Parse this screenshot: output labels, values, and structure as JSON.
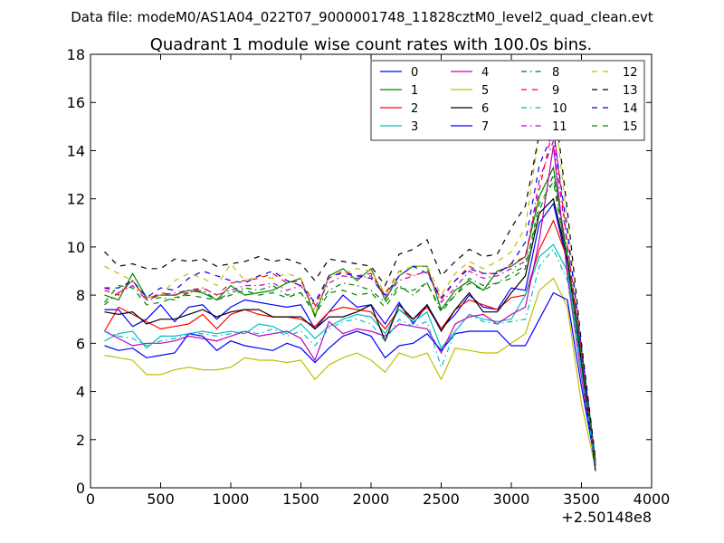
{
  "figure": {
    "suptitle": "Data file: modeM0/AS1A04_022T07_9000001748_11828cztM0_level2_quad_clean.evt"
  },
  "chart_data": {
    "type": "line",
    "title": "Quadrant 1 module wise count rates with 100.0s bins.",
    "xlabel": "",
    "ylabel": "",
    "x_offset_label": "+2.50148e8",
    "xlim": [
      0,
      4000
    ],
    "ylim": [
      0,
      18
    ],
    "xticks": [
      0,
      500,
      1000,
      1500,
      2000,
      2500,
      3000,
      3500,
      4000
    ],
    "yticks": [
      0,
      2,
      4,
      6,
      8,
      10,
      12,
      14,
      16,
      18
    ],
    "grid": false,
    "legend_position": "top-right",
    "legend_columns": 4,
    "x": [
      100,
      200,
      300,
      400,
      500,
      600,
      700,
      800,
      900,
      1000,
      1100,
      1200,
      1300,
      1400,
      1500,
      1600,
      1700,
      1800,
      1900,
      2000,
      2100,
      2200,
      2300,
      2400,
      2500,
      2600,
      2700,
      2800,
      2900,
      3000,
      3100,
      3200,
      3300,
      3400,
      3500,
      3600
    ],
    "series": [
      {
        "name": "0",
        "color": "#0000ff",
        "dash": "solid",
        "values": [
          7.4,
          7.4,
          6.7,
          7.0,
          7.6,
          6.9,
          7.5,
          7.6,
          7.0,
          7.5,
          7.8,
          7.7,
          7.6,
          7.5,
          7.6,
          6.6,
          7.3,
          8.0,
          7.5,
          7.6,
          6.8,
          7.7,
          6.8,
          7.6,
          6.6,
          7.2,
          8.0,
          7.5,
          7.4,
          8.3,
          8.2,
          11.0,
          11.8,
          9.3,
          5.5,
          1.1
        ]
      },
      {
        "name": "1",
        "color": "#008000",
        "dash": "solid",
        "values": [
          8.0,
          7.8,
          8.9,
          7.9,
          8.0,
          8.0,
          8.2,
          8.1,
          7.8,
          8.4,
          8.0,
          8.1,
          8.2,
          8.5,
          8.7,
          7.1,
          8.8,
          9.1,
          8.6,
          9.1,
          7.8,
          8.8,
          9.2,
          9.2,
          7.4,
          8.2,
          8.6,
          8.2,
          9.0,
          9.2,
          9.6,
          12.1,
          13.3,
          9.6,
          5.6,
          1.0
        ]
      },
      {
        "name": "2",
        "color": "#ff0000",
        "dash": "solid",
        "values": [
          6.5,
          7.5,
          7.2,
          6.9,
          6.6,
          6.7,
          6.8,
          7.2,
          6.6,
          7.2,
          7.4,
          7.2,
          7.1,
          7.1,
          7.0,
          6.7,
          7.3,
          7.5,
          7.4,
          7.3,
          6.6,
          7.4,
          7.0,
          7.5,
          6.6,
          7.4,
          7.8,
          7.6,
          7.4,
          7.9,
          8.0,
          9.9,
          11.1,
          9.5,
          5.4,
          1.0
        ]
      },
      {
        "name": "3",
        "color": "#00bfbf",
        "dash": "solid",
        "values": [
          6.1,
          6.4,
          6.5,
          5.8,
          6.3,
          6.3,
          6.4,
          6.5,
          6.4,
          6.5,
          6.4,
          6.8,
          6.7,
          6.4,
          6.8,
          6.2,
          6.7,
          7.0,
          7.2,
          7.1,
          6.4,
          7.4,
          6.9,
          7.3,
          5.8,
          6.5,
          7.2,
          7.0,
          6.9,
          7.0,
          8.0,
          9.6,
          10.1,
          9.0,
          5.0,
          0.9
        ]
      },
      {
        "name": "4",
        "color": "#bf00bf",
        "dash": "solid",
        "values": [
          6.5,
          6.2,
          5.9,
          6.0,
          6.0,
          6.1,
          6.3,
          6.2,
          6.1,
          6.3,
          6.5,
          6.3,
          6.4,
          6.5,
          6.2,
          5.3,
          6.9,
          6.4,
          6.6,
          6.5,
          6.3,
          6.8,
          6.7,
          6.6,
          5.6,
          6.8,
          7.1,
          7.2,
          6.8,
          7.2,
          7.5,
          10.3,
          14.2,
          8.8,
          4.6,
          0.9
        ]
      },
      {
        "name": "5",
        "color": "#bfbf00",
        "dash": "solid",
        "values": [
          5.5,
          5.4,
          5.3,
          4.7,
          4.7,
          4.9,
          5.0,
          4.9,
          4.9,
          5.0,
          5.4,
          5.3,
          5.3,
          5.2,
          5.3,
          4.5,
          5.1,
          5.4,
          5.6,
          5.3,
          4.8,
          5.6,
          5.4,
          5.6,
          4.5,
          5.8,
          5.7,
          5.6,
          5.6,
          6.0,
          6.4,
          8.2,
          8.7,
          7.5,
          3.5,
          0.8
        ]
      },
      {
        "name": "6",
        "color": "#000000",
        "dash": "solid",
        "values": [
          7.3,
          7.2,
          7.3,
          6.8,
          7.0,
          7.0,
          7.2,
          7.4,
          7.1,
          7.3,
          7.4,
          7.4,
          7.1,
          7.1,
          7.1,
          6.6,
          7.1,
          7.1,
          7.3,
          7.6,
          6.1,
          7.6,
          7.0,
          7.6,
          6.5,
          7.4,
          8.1,
          7.3,
          7.3,
          8.1,
          8.8,
          11.4,
          12.0,
          9.5,
          5.2,
          0.7
        ]
      },
      {
        "name": "7",
        "color": "#0000ff",
        "dash": "solid",
        "values": [
          5.9,
          5.7,
          5.8,
          5.4,
          5.5,
          5.6,
          6.4,
          6.3,
          5.7,
          6.1,
          5.9,
          5.8,
          5.7,
          6.0,
          5.8,
          5.2,
          5.8,
          6.3,
          6.5,
          6.3,
          5.4,
          5.9,
          6.0,
          6.4,
          5.7,
          6.4,
          6.5,
          6.5,
          6.5,
          5.9,
          5.9,
          7.0,
          8.1,
          7.8,
          4.2,
          1.0
        ]
      },
      {
        "name": "8",
        "color": "#008000",
        "dash": "dashdot",
        "values": [
          7.6,
          8.1,
          8.6,
          7.8,
          7.9,
          7.8,
          8.1,
          8.2,
          7.8,
          8.1,
          8.3,
          8.2,
          8.4,
          8.0,
          8.1,
          7.4,
          8.2,
          8.5,
          8.4,
          8.2,
          7.7,
          8.4,
          8.0,
          8.5,
          7.4,
          8.0,
          8.7,
          8.4,
          8.5,
          8.9,
          9.2,
          11.5,
          13.0,
          9.3,
          5.4,
          0.9
        ]
      },
      {
        "name": "9",
        "color": "#ff0000",
        "dash": "dashed",
        "values": [
          8.2,
          8.0,
          8.6,
          7.8,
          8.1,
          8.0,
          8.1,
          8.3,
          8.0,
          8.5,
          8.6,
          8.7,
          8.9,
          8.5,
          8.6,
          7.6,
          8.7,
          9.0,
          8.8,
          8.9,
          8.0,
          9.0,
          8.8,
          9.0,
          7.8,
          8.6,
          9.2,
          8.9,
          8.9,
          9.3,
          9.6,
          12.4,
          15.0,
          10.1,
          5.7,
          1.0
        ]
      },
      {
        "name": "10",
        "color": "#00bfbf",
        "dash": "dashdot",
        "values": [
          6.5,
          6.3,
          6.2,
          5.9,
          6.1,
          6.2,
          6.4,
          6.4,
          6.3,
          6.4,
          6.5,
          6.4,
          6.6,
          6.3,
          6.5,
          5.9,
          6.6,
          6.9,
          7.0,
          6.8,
          6.1,
          7.0,
          6.7,
          6.9,
          5.0,
          6.5,
          7.2,
          6.9,
          6.8,
          6.9,
          7.0,
          9.2,
          9.9,
          8.6,
          4.8,
          0.9
        ]
      },
      {
        "name": "11",
        "color": "#bf00bf",
        "dash": "dashdot",
        "values": [
          8.3,
          8.1,
          8.4,
          7.8,
          8.0,
          8.1,
          8.2,
          8.3,
          8.0,
          8.2,
          8.4,
          8.4,
          8.5,
          8.2,
          8.4,
          7.5,
          8.5,
          8.8,
          8.7,
          8.8,
          7.9,
          8.6,
          8.8,
          9.0,
          7.7,
          8.3,
          9.0,
          8.7,
          8.8,
          9.1,
          9.4,
          12.8,
          14.4,
          10.0,
          5.6,
          1.0
        ]
      },
      {
        "name": "12",
        "color": "#bfbf00",
        "dash": "dashed",
        "values": [
          9.2,
          8.9,
          8.6,
          7.9,
          8.0,
          8.6,
          8.9,
          8.7,
          8.4,
          9.3,
          8.6,
          8.8,
          8.7,
          8.9,
          8.7,
          7.2,
          8.8,
          8.9,
          9.1,
          9.0,
          8.1,
          9.0,
          9.2,
          9.2,
          8.0,
          8.9,
          9.4,
          9.1,
          9.4,
          9.8,
          10.8,
          14.8,
          16.1,
          11.0,
          5.8,
          1.1
        ]
      },
      {
        "name": "13",
        "color": "#000000",
        "dash": "dashed",
        "values": [
          9.8,
          9.2,
          9.3,
          9.1,
          9.1,
          9.5,
          9.4,
          9.5,
          9.2,
          9.3,
          9.4,
          9.6,
          9.4,
          9.5,
          9.3,
          8.6,
          9.5,
          9.4,
          9.3,
          9.2,
          8.4,
          9.7,
          9.9,
          10.3,
          8.8,
          9.4,
          9.9,
          9.6,
          9.7,
          10.8,
          11.7,
          14.7,
          16.4,
          11.5,
          6.0,
          1.2
        ]
      },
      {
        "name": "14",
        "color": "#0000ff",
        "dash": "dashed",
        "values": [
          8.3,
          8.3,
          8.6,
          7.9,
          8.3,
          8.2,
          8.7,
          9.0,
          8.8,
          8.6,
          8.5,
          8.8,
          9.0,
          8.6,
          8.4,
          7.7,
          8.8,
          8.9,
          8.8,
          8.7,
          8.0,
          8.8,
          9.2,
          8.9,
          7.9,
          8.6,
          9.1,
          8.9,
          8.9,
          9.3,
          10.2,
          13.4,
          14.8,
          10.6,
          5.8,
          1.1
        ]
      },
      {
        "name": "15",
        "color": "#008000",
        "dash": "dashed",
        "values": [
          7.7,
          8.4,
          8.3,
          7.6,
          7.7,
          7.9,
          8.0,
          7.9,
          7.8,
          8.0,
          8.2,
          8.0,
          8.1,
          7.9,
          8.1,
          7.2,
          8.1,
          8.2,
          8.0,
          8.1,
          7.5,
          8.3,
          8.2,
          8.5,
          7.3,
          8.0,
          8.5,
          8.2,
          8.5,
          8.7,
          9.1,
          11.8,
          12.7,
          9.4,
          5.4,
          1.0
        ]
      }
    ]
  }
}
